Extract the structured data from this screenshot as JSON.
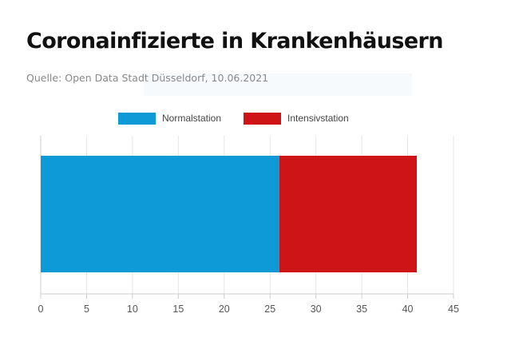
{
  "header": {
    "title": "Coronainfizierte in Krankenhäusern",
    "source": "Quelle: Open Data Stadt Düsseldorf, 10.06.2021"
  },
  "legend": {
    "items": [
      {
        "label": "Normalstation",
        "color": "#0e9ad7"
      },
      {
        "label": "Intensivstation",
        "color": "#cf1417"
      }
    ]
  },
  "chart_data": {
    "type": "bar",
    "orientation": "horizontal",
    "stacked": true,
    "categories": [
      ""
    ],
    "series": [
      {
        "name": "Normalstation",
        "values": [
          26
        ],
        "color": "#0e9ad7"
      },
      {
        "name": "Intensivstation",
        "values": [
          15
        ],
        "color": "#cf1417"
      }
    ],
    "xlim": [
      0,
      45
    ],
    "xticks": [
      "0",
      "5",
      "10",
      "15",
      "20",
      "25",
      "30",
      "35",
      "40",
      "45"
    ],
    "grid": true,
    "legend_position": "top"
  }
}
